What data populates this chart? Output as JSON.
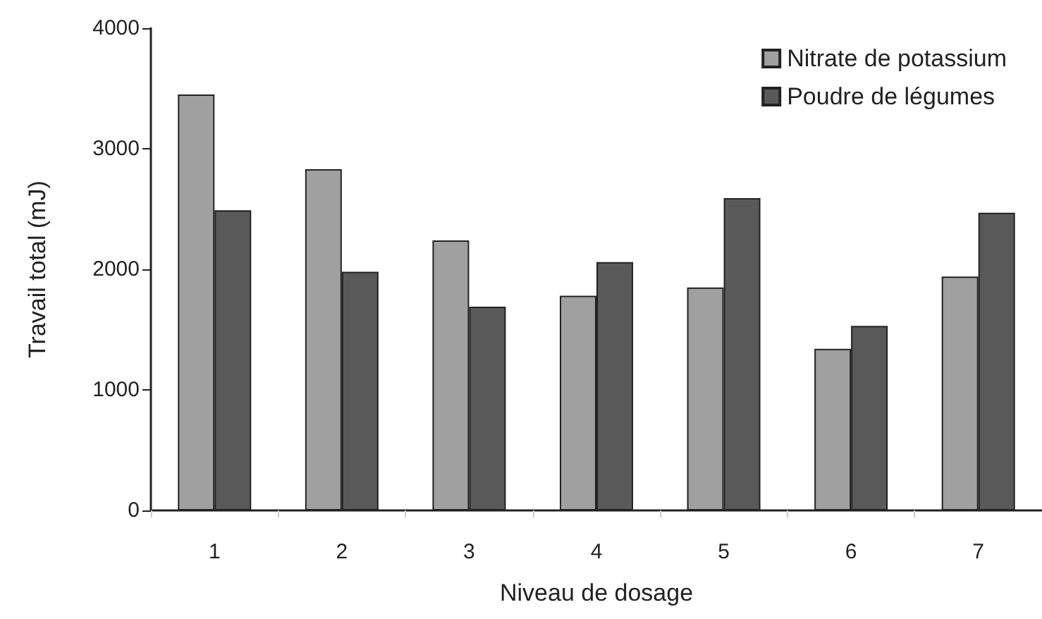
{
  "chart_data": {
    "type": "bar",
    "xlabel": "Niveau de dosage",
    "ylabel": "Travail total (mJ)",
    "categories": [
      "1",
      "2",
      "3",
      "4",
      "5",
      "6",
      "7"
    ],
    "series": [
      {
        "name": "Nitrate de potassium",
        "color": "#a0a0a0",
        "values": [
          3450,
          2830,
          2240,
          1780,
          1850,
          1340,
          1940
        ]
      },
      {
        "name": "Poudre de légumes",
        "color": "#595959",
        "values": [
          2490,
          1980,
          1690,
          2060,
          2590,
          1530,
          2470
        ]
      }
    ],
    "ylim": [
      0,
      4000
    ],
    "yticks": [
      0,
      1000,
      2000,
      3000,
      4000
    ],
    "grid": false,
    "legend": "top right"
  }
}
